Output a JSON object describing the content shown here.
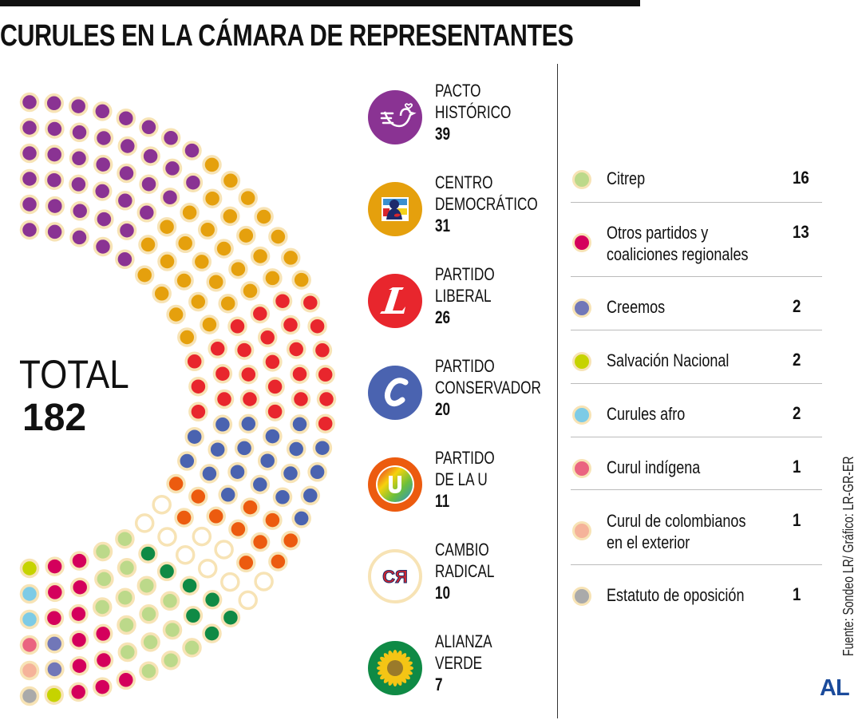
{
  "title": "CURULES EN LA CÁMARA DE REPRESENTANTES",
  "total": {
    "label": "TOTAL",
    "value": "182"
  },
  "chart_data": {
    "type": "pie",
    "title": "CURULES EN LA CÁMARA DE REPRESENTANTES",
    "total": 182,
    "categories": [
      "Pacto Histórico",
      "Centro Democrático",
      "Partido Liberal",
      "Partido Conservador",
      "Partido de la U",
      "Cambio Radical",
      "Alianza Verde",
      "Citrep",
      "Otros partidos y coaliciones regionales",
      "Creemos",
      "Salvación Nacional",
      "Curules afro",
      "Curul indígena",
      "Curul de colombianos en el exterior",
      "Estatuto de oposición"
    ],
    "values": [
      39,
      31,
      26,
      20,
      11,
      10,
      7,
      16,
      13,
      2,
      2,
      2,
      1,
      1,
      1
    ],
    "colors": [
      "#8a3393",
      "#e5a00d",
      "#e8262d",
      "#4a63b0",
      "#ec5b0f",
      "#ffffff",
      "#0f8a45",
      "#bcd98a",
      "#d4005c",
      "#7177b8",
      "#c6d300",
      "#7dcbe6",
      "#ea6480",
      "#f5b39a",
      "#aaaaaa"
    ]
  },
  "parties": [
    {
      "line1": "PACTO",
      "line2": "HISTÓRICO",
      "seats": "39",
      "logo": "dove-logo",
      "color": "#8a3393"
    },
    {
      "line1": "CENTRO",
      "line2": "DEMOCRÁTICO",
      "seats": "31",
      "logo": "silhouette-logo",
      "color": "#e5a00d"
    },
    {
      "line1": "PARTIDO",
      "line2": "LIBERAL",
      "seats": "26",
      "logo": "letter-l-logo",
      "color": "#e8262d"
    },
    {
      "line1": "PARTIDO",
      "line2": "CONSERVADOR",
      "seats": "20",
      "logo": "letter-c-logo",
      "color": "#4a63b0"
    },
    {
      "line1": "PARTIDO",
      "line2": "DE LA U",
      "seats": "11",
      "logo": "rainbow-u-logo",
      "color": "#ec5b0f"
    },
    {
      "line1": "CAMBIO",
      "line2": "RADICAL",
      "seats": "10",
      "logo": "cr-logo",
      "color": "#ffffff"
    },
    {
      "line1": "ALIANZA",
      "line2": "VERDE",
      "seats": "7",
      "logo": "sunflower-logo",
      "color": "#0f8a45"
    }
  ],
  "others": [
    {
      "line1": "Citrep",
      "line2": "",
      "seats": "16",
      "color": "#bcd98a"
    },
    {
      "line1": "Otros partidos y",
      "line2": "coaliciones regionales",
      "seats": "13",
      "color": "#d4005c"
    },
    {
      "line1": "Creemos",
      "line2": "",
      "seats": "2",
      "color": "#7177b8"
    },
    {
      "line1": "Salvación Nacional",
      "line2": "",
      "seats": "2",
      "color": "#c6d300"
    },
    {
      "line1": "Curules afro",
      "line2": "",
      "seats": "2",
      "color": "#7dcbe6"
    },
    {
      "line1": "Curul indígena",
      "line2": "",
      "seats": "1",
      "color": "#ea6480"
    },
    {
      "line1": "Curul de colombianos",
      "line2": "en el exterior",
      "seats": "1",
      "color": "#f5b39a"
    },
    {
      "line1": "Estatuto de oposición",
      "line2": "",
      "seats": "1",
      "color": "#aaaaaa"
    }
  ],
  "source": "Fuente: Sondeo LR/ Gráfico: LR-GR-ER",
  "brand": "AL"
}
